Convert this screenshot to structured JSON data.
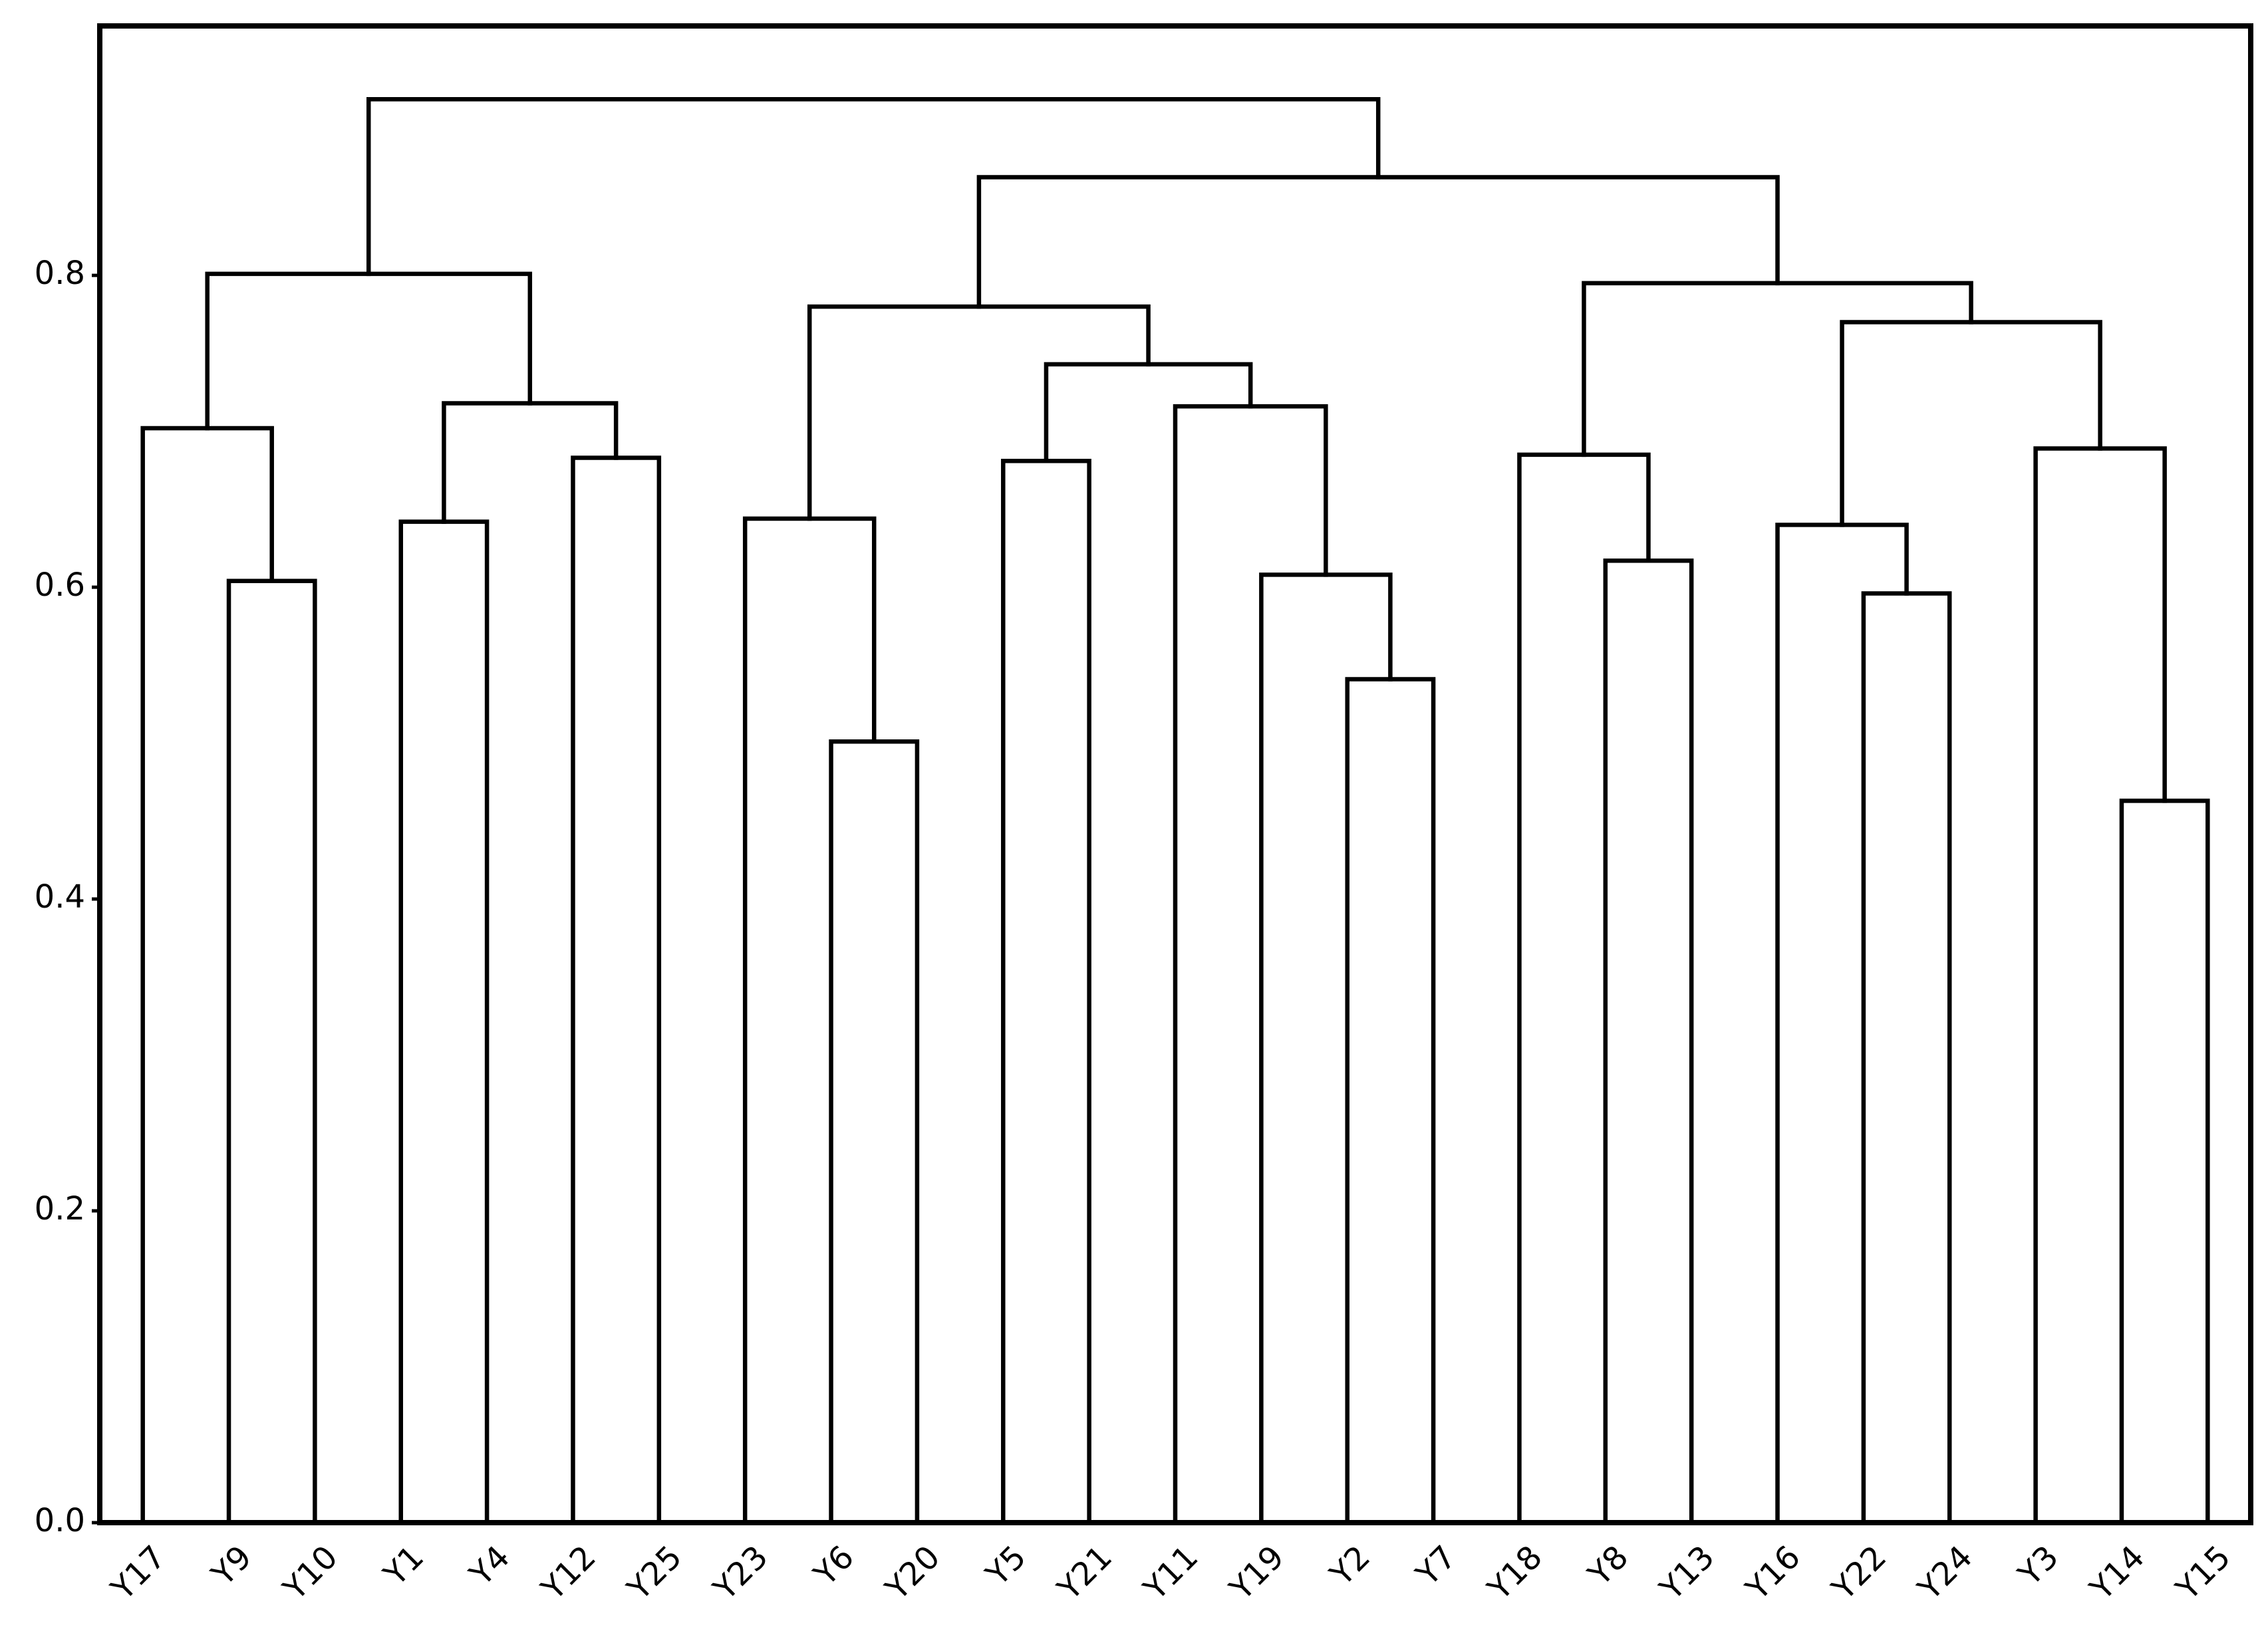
{
  "chart_data": {
    "type": "dendrogram",
    "ylim": [
      0,
      0.96
    ],
    "yticks": [
      {
        "value": 0,
        "label": "0.0"
      },
      0.2,
      0.4,
      0.6,
      0.8
    ],
    "color": "#000000",
    "tree": {
      "height": 0.913,
      "children": [
        {
          "height": 0.801,
          "children": [
            {
              "height": 0.702,
              "children": [
                {
                  "label": "Y17"
                },
                {
                  "height": 0.604,
                  "children": [
                    {
                      "label": "Y9"
                    },
                    {
                      "label": "Y10"
                    }
                  ]
                }
              ]
            },
            {
              "height": 0.718,
              "children": [
                {
                  "height": 0.642,
                  "children": [
                    {
                      "label": "Y1"
                    },
                    {
                      "label": "Y4"
                    }
                  ]
                },
                {
                  "height": 0.683,
                  "children": [
                    {
                      "label": "Y12"
                    },
                    {
                      "label": "Y25"
                    }
                  ]
                }
              ]
            }
          ]
        },
        {
          "height": 0.863,
          "children": [
            {
              "height": 0.78,
              "children": [
                {
                  "height": 0.644,
                  "children": [
                    {
                      "label": "Y23"
                    },
                    {
                      "height": 0.501,
                      "children": [
                        {
                          "label": "Y6"
                        },
                        {
                          "label": "Y20"
                        }
                      ]
                    }
                  ]
                },
                {
                  "height": 0.743,
                  "children": [
                    {
                      "height": 0.681,
                      "children": [
                        {
                          "label": "Y5"
                        },
                        {
                          "label": "Y21"
                        }
                      ]
                    },
                    {
                      "height": 0.716,
                      "children": [
                        {
                          "label": "Y11"
                        },
                        {
                          "height": 0.608,
                          "children": [
                            {
                              "label": "Y19"
                            },
                            {
                              "height": 0.541,
                              "children": [
                                {
                                  "label": "Y2"
                                },
                                {
                                  "label": "Y7"
                                }
                              ]
                            }
                          ]
                        }
                      ]
                    }
                  ]
                }
              ]
            },
            {
              "height": 0.795,
              "children": [
                {
                  "height": 0.685,
                  "children": [
                    {
                      "label": "Y18"
                    },
                    {
                      "height": 0.617,
                      "children": [
                        {
                          "label": "Y8"
                        },
                        {
                          "label": "Y13"
                        }
                      ]
                    }
                  ]
                },
                {
                  "height": 0.77,
                  "children": [
                    {
                      "height": 0.64,
                      "children": [
                        {
                          "label": "Y16"
                        },
                        {
                          "height": 0.596,
                          "children": [
                            {
                              "label": "Y22"
                            },
                            {
                              "label": "Y24"
                            }
                          ]
                        }
                      ]
                    },
                    {
                      "height": 0.689,
                      "children": [
                        {
                          "label": "Y3"
                        },
                        {
                          "height": 0.463,
                          "children": [
                            {
                              "label": "Y14"
                            },
                            {
                              "label": "Y15"
                            }
                          ]
                        }
                      ]
                    }
                  ]
                }
              ]
            }
          ]
        }
      ]
    }
  }
}
